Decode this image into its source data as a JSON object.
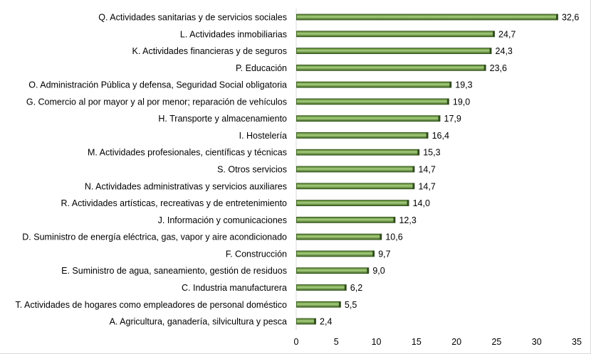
{
  "chart_data": {
    "type": "bar",
    "orientation": "horizontal",
    "categories": [
      "Q. Actividades sanitarias y de servicios sociales",
      "L. Actividades inmobiliarias",
      "K. Actividades financieras y de seguros",
      "P. Educación",
      "O. Administración Pública y defensa, Seguridad Social obligatoria",
      "G. Comercio al por mayor y al por menor; reparación de vehículos",
      "H. Transporte y almacenamiento",
      "I. Hostelería",
      "M. Actividades profesionales, científicas y técnicas",
      "S. Otros servicios",
      "N. Actividades administrativas y servicios auxiliares",
      "R. Actividades artísticas, recreativas y de entretenimiento",
      "J. Información y comunicaciones",
      "D. Suministro de energía eléctrica, gas, vapor y aire acondicionado",
      "F. Construcción",
      "E. Suministro de agua, saneamiento, gestión de residuos",
      "C. Industria manufacturera",
      "T. Actividades de hogares como empleadores de personal doméstico",
      "A. Agricultura, ganadería, silvicultura y pesca"
    ],
    "values": [
      32.6,
      24.7,
      24.3,
      23.6,
      19.3,
      19.0,
      17.9,
      16.4,
      15.3,
      14.7,
      14.7,
      14.0,
      12.3,
      10.6,
      9.7,
      9.0,
      6.2,
      5.5,
      2.4
    ],
    "value_labels": [
      "32,6",
      "24,7",
      "24,3",
      "23,6",
      "19,3",
      "19,0",
      "17,9",
      "16,4",
      "15,3",
      "14,7",
      "14,7",
      "14,0",
      "12,3",
      "10,6",
      "9,7",
      "9,0",
      "6,2",
      "5,5",
      "2,4"
    ],
    "xlim": [
      0,
      35
    ],
    "xticks": [
      "0",
      "5",
      "10",
      "15",
      "20",
      "25",
      "30",
      "35"
    ],
    "grid": false,
    "legend": "none",
    "title": "",
    "xlabel": "",
    "ylabel": "",
    "colors": {
      "bar": "#5a8a32",
      "bar_light": "#a4cc7a",
      "bar_dark": "#2f4f18",
      "axis": "#d9d9d9"
    }
  }
}
